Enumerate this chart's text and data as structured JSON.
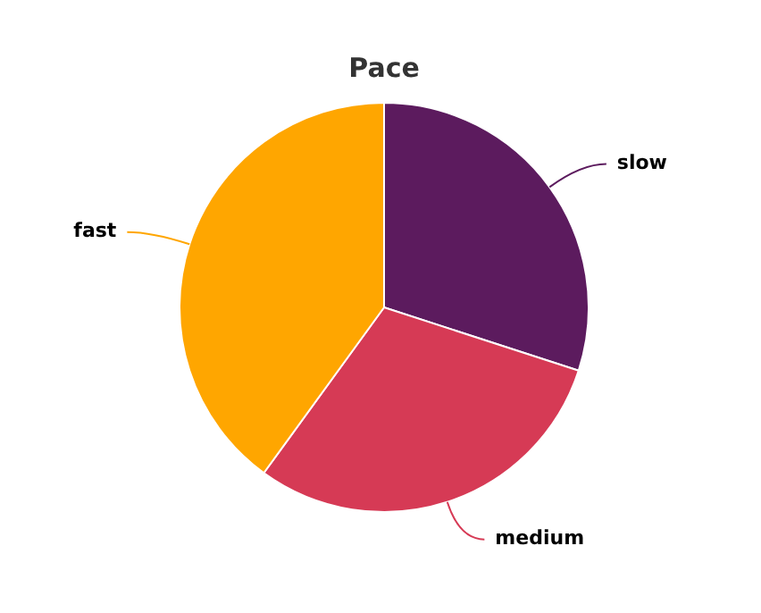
{
  "chart_data": {
    "type": "pie",
    "title": "Pace",
    "categories": [
      "slow",
      "medium",
      "fast"
    ],
    "values": [
      30,
      30,
      40
    ],
    "colors": [
      "#5c1b5e",
      "#d63a55",
      "#ffa600"
    ],
    "legend": false
  }
}
